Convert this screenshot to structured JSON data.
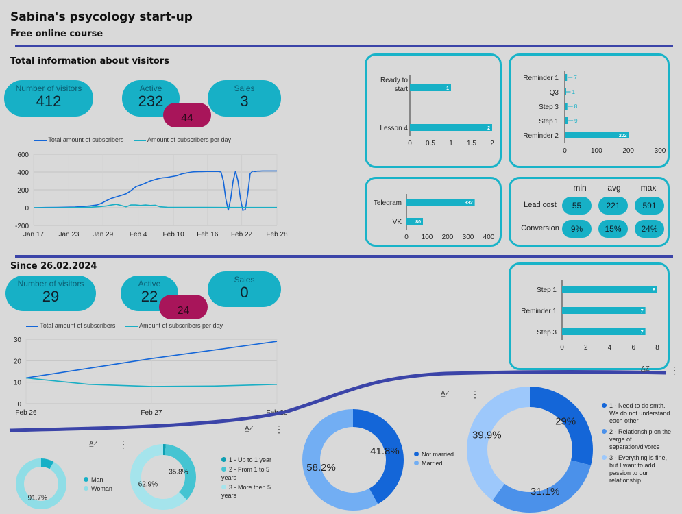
{
  "header": {
    "title": "Sabina's psycology start-up",
    "subtitle": "Free online course"
  },
  "colors": {
    "teal": "#17b0c6",
    "dark_blue": "#1466d8",
    "magenta": "#a8155a",
    "rule": "#3b44a8"
  },
  "section1": {
    "title": "Total information about visitors",
    "visitors": {
      "label": "Number of visitors",
      "value": "412"
    },
    "active": {
      "label": "Active",
      "value": "232"
    },
    "sales": {
      "label": "Sales",
      "value": "3"
    },
    "extra": {
      "value": "44"
    }
  },
  "section2": {
    "title": "Since 26.02.2024",
    "visitors": {
      "label": "Number of visitors",
      "value": "29"
    },
    "active": {
      "label": "Active",
      "value": "22"
    },
    "sales": {
      "label": "Sales",
      "value": "0"
    },
    "extra": {
      "value": "24"
    }
  },
  "stats": {
    "headers": [
      "min",
      "avg",
      "max"
    ],
    "rows": [
      {
        "label": "Lead cost",
        "values": [
          "55",
          "221",
          "591"
        ]
      },
      {
        "label": "Conversion",
        "values": [
          "9%",
          "15%",
          "24%"
        ]
      }
    ]
  },
  "icons": {
    "sort": "sort-az-icon",
    "menu": "kebab-menu-icon"
  },
  "ui": {
    "az": "A̲Z",
    "kebab": "⋮"
  },
  "chart_data": [
    {
      "type": "line",
      "id": "line1",
      "legend": [
        "Total amount of subscribers",
        "Amount of subscribers per day"
      ],
      "x_ticks": [
        "Jan 17",
        "Jan 23",
        "Jan 29",
        "Feb 4",
        "Feb 10",
        "Feb 16",
        "Feb 22",
        "Feb 28"
      ],
      "y_ticks": [
        "600",
        "400",
        "200",
        "0",
        "-200"
      ],
      "ylim": [
        -200,
        600
      ],
      "series": [
        {
          "name": "Total amount of subscribers",
          "color": "#1466d8",
          "x": [
            0,
            5,
            10,
            15,
            17,
            20,
            23,
            26,
            28,
            30,
            32,
            35,
            38,
            40,
            42,
            45,
            48,
            51,
            53,
            55,
            56,
            57,
            58,
            59,
            60,
            61,
            62,
            63,
            64,
            65,
            66,
            67,
            68,
            69,
            70,
            71,
            72,
            73,
            74,
            75,
            76,
            77,
            78,
            79,
            80,
            81,
            82,
            83,
            84,
            85,
            86,
            87,
            88,
            89,
            90,
            91,
            92,
            93,
            94,
            95,
            96,
            97,
            98,
            99,
            100
          ],
          "y": [
            0,
            2,
            4,
            6,
            8,
            12,
            20,
            30,
            50,
            80,
            105,
            130,
            155,
            190,
            235,
            265,
            300,
            325,
            335,
            340,
            345,
            350,
            355,
            360,
            370,
            380,
            385,
            390,
            395,
            400,
            402,
            403,
            404,
            404,
            405,
            406,
            406,
            406,
            406,
            406,
            406,
            400,
            300,
            100,
            -30,
            100,
            300,
            410,
            300,
            100,
            -30,
            -20,
            150,
            380,
            410,
            405,
            410,
            410,
            412,
            412,
            412,
            412,
            412,
            412,
            412
          ]
        },
        {
          "name": "Amount of subscribers per day",
          "color": "#1aaec4",
          "x": [
            0,
            10,
            20,
            22,
            24,
            26,
            28,
            30,
            32,
            34,
            36,
            38,
            40,
            42,
            44,
            46,
            48,
            50,
            52,
            55,
            60,
            70,
            80,
            90,
            100
          ],
          "y": [
            0,
            0,
            2,
            4,
            6,
            10,
            14,
            20,
            30,
            38,
            25,
            10,
            30,
            30,
            25,
            30,
            25,
            28,
            10,
            5,
            3,
            3,
            2,
            2,
            2
          ]
        }
      ]
    },
    {
      "type": "bar",
      "id": "bar_lesson",
      "orientation": "horizontal",
      "categories": [
        "Ready to start",
        "Lesson 4"
      ],
      "values": [
        1,
        2
      ],
      "xlim": [
        0,
        2
      ],
      "x_ticks": [
        "0",
        "0.5",
        "1",
        "1.5",
        "2"
      ]
    },
    {
      "type": "bar",
      "id": "bar_reminder",
      "orientation": "horizontal",
      "categories": [
        "Reminder 1",
        "Q3",
        "Step 3",
        "Step 1",
        "Reminder 2"
      ],
      "values": [
        7,
        1,
        8,
        9,
        202
      ],
      "xlim": [
        0,
        300
      ],
      "x_ticks": [
        "0",
        "100",
        "200",
        "300"
      ]
    },
    {
      "type": "bar",
      "id": "bar_channel",
      "orientation": "horizontal",
      "categories": [
        "Telegram",
        "VK"
      ],
      "values": [
        332,
        80
      ],
      "xlim": [
        0,
        400
      ],
      "x_ticks": [
        "0",
        "100",
        "200",
        "300",
        "400"
      ]
    },
    {
      "type": "bar",
      "id": "bar_steps2",
      "orientation": "horizontal",
      "categories": [
        "Step 1",
        "Reminder 1",
        "Step 3"
      ],
      "values": [
        8,
        7,
        7
      ],
      "xlim": [
        0,
        8
      ],
      "x_ticks": [
        "0",
        "2",
        "4",
        "6",
        "8"
      ]
    },
    {
      "type": "line",
      "id": "line2",
      "legend": [
        "Total amount of subscribers",
        "Amount of subscribers per day"
      ],
      "x_ticks": [
        "Feb 26",
        "Feb 27",
        "Feb 28"
      ],
      "y_ticks": [
        "30",
        "20",
        "10",
        "0"
      ],
      "ylim": [
        0,
        30
      ],
      "series": [
        {
          "name": "Total amount of subscribers",
          "color": "#1466d8",
          "x": [
            0,
            0.5,
            1,
            1.5,
            2
          ],
          "y": [
            12,
            16.5,
            21,
            25,
            29
          ]
        },
        {
          "name": "Amount of subscribers per day",
          "color": "#1aaec4",
          "x": [
            0,
            0.5,
            1,
            1.5,
            2
          ],
          "y": [
            12,
            9,
            8,
            8.2,
            9
          ]
        }
      ]
    },
    {
      "type": "pie",
      "id": "pie_gender",
      "donut": true,
      "labels": [
        "Man",
        "Woman"
      ],
      "values": [
        8.3,
        91.7
      ],
      "colors": [
        "#17b0c6",
        "#8fdde6"
      ],
      "value_labels": [
        "",
        "91.7%"
      ]
    },
    {
      "type": "pie",
      "id": "pie_years",
      "donut": true,
      "labels": [
        "1 - Up to 1 year",
        "2 - From 1 to 5 years",
        "3 - More then 5 years"
      ],
      "values": [
        1.3,
        35.8,
        62.9
      ],
      "colors": [
        "#0e9fb2",
        "#45c4d2",
        "#a5e4ec"
      ],
      "value_labels": [
        "",
        "35.8%",
        "62.9%"
      ]
    },
    {
      "type": "pie",
      "id": "pie_married",
      "donut": true,
      "labels": [
        "Not married",
        "Married"
      ],
      "values": [
        41.8,
        58.2
      ],
      "colors": [
        "#1466d8",
        "#72aef3"
      ],
      "value_labels": [
        "41.8%",
        "58.2%"
      ]
    },
    {
      "type": "pie",
      "id": "pie_reason",
      "donut": true,
      "labels": [
        "1 - Need to do smth. We do not understand each other",
        "2 - Relationship on the verge of separation/divorce",
        "3 - Everything is fine, but I want to add passion to our relationship"
      ],
      "values": [
        29,
        31.1,
        39.9
      ],
      "colors": [
        "#1466d8",
        "#4b91ea",
        "#9dc8fb"
      ],
      "value_labels": [
        "29%",
        "31.1%",
        "39.9%"
      ]
    }
  ]
}
